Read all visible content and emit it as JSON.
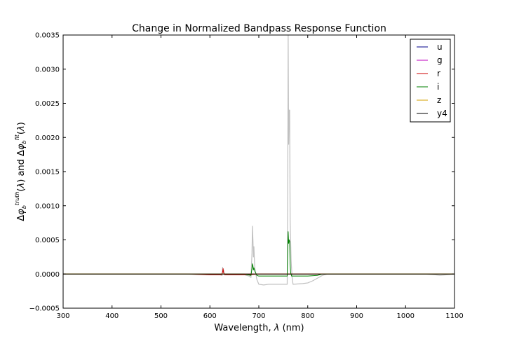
{
  "chart_data": {
    "type": "line",
    "title": "Change in Normalized Bandpass Response Function",
    "xlabel": "Wavelength, λ (nm)",
    "ylabel": "Δφ_b^truth(λ) and Δφ_b^fit(λ)",
    "xlim": [
      300,
      1100
    ],
    "ylim": [
      -0.0005,
      0.0035
    ],
    "xticks": [
      300,
      400,
      500,
      600,
      700,
      800,
      900,
      1000,
      1100
    ],
    "xtick_labels": [
      "300",
      "400",
      "500",
      "600",
      "700",
      "800",
      "900",
      "1000",
      "1100"
    ],
    "yticks": [
      -0.0005,
      0.0,
      0.0005,
      0.001,
      0.0015,
      0.002,
      0.0025,
      0.003,
      0.0035
    ],
    "ytick_labels": [
      "−0.0005",
      "0.0000",
      "0.0005",
      "0.0010",
      "0.0015",
      "0.0020",
      "0.0025",
      "0.0030",
      "0.0035"
    ],
    "grid": false,
    "legend_position": "top-right",
    "series": [
      {
        "name": "u",
        "color": "#00008b",
        "x": [
          300,
          1100
        ],
        "y": [
          0.0,
          0.0
        ]
      },
      {
        "name": "g",
        "color": "#bf00bf",
        "x": [
          300,
          1100
        ],
        "y": [
          0.0,
          0.0
        ]
      },
      {
        "name": "r",
        "color": "#cc0000",
        "x": [
          300,
          550,
          600,
          624,
          626,
          627,
          628,
          630,
          650,
          680,
          700,
          1100
        ],
        "y": [
          0.0,
          0.0,
          -1e-05,
          -1e-05,
          3e-05,
          8e-05,
          2e-05,
          -1e-05,
          -1e-05,
          -1e-05,
          0.0,
          0.0
        ]
      },
      {
        "name": "i",
        "color": "#008000",
        "x": [
          300,
          670,
          684,
          686,
          687,
          688,
          689,
          690,
          692,
          696,
          700,
          720,
          758,
          759,
          760,
          761,
          762,
          763,
          764,
          765,
          767,
          770,
          780,
          800,
          820,
          830,
          1100
        ],
        "y": [
          0.0,
          0.0,
          -2e-05,
          8e-05,
          0.00015,
          0.00012,
          6e-05,
          9e-05,
          4e-05,
          -2e-05,
          -3e-05,
          -3e-05,
          -3e-05,
          0.0003,
          0.00062,
          0.00045,
          0.0005,
          0.00048,
          0.00015,
          2e-05,
          -3e-05,
          -3e-05,
          -3e-05,
          -3e-05,
          -2e-05,
          0.0,
          0.0
        ]
      },
      {
        "name": "z",
        "color": "#d4a000",
        "x": [
          300,
          1100
        ],
        "y": [
          0.0,
          0.0
        ]
      },
      {
        "name": "y4",
        "color": "#000000",
        "x": [
          300,
          1100
        ],
        "y": [
          0.0,
          0.0
        ]
      },
      {
        "name": "",
        "color": "#c0c0c0",
        "x": [
          300,
          550,
          600,
          620,
          625,
          626,
          627,
          628,
          630,
          650,
          670,
          680,
          684,
          686,
          687,
          688,
          689,
          690,
          691,
          692,
          694,
          696,
          700,
          710,
          720,
          740,
          758,
          759,
          760,
          761,
          762,
          763,
          764,
          766,
          768,
          770,
          790,
          800,
          810,
          820,
          830,
          840,
          850,
          900,
          1000,
          1040,
          1060,
          1070,
          1100
        ],
        "y": [
          0.0,
          0.0,
          -1e-05,
          -1e-05,
          -2e-05,
          0.0001,
          3e-05,
          6e-05,
          -1e-05,
          -1e-05,
          -1e-05,
          -3e-05,
          -5e-05,
          0.0003,
          0.0007,
          0.0005,
          0.00025,
          0.0004,
          0.0002,
          8e-05,
          0.0,
          -8e-05,
          -0.00015,
          -0.00016,
          -0.00015,
          -0.00015,
          -0.00015,
          0.001,
          0.0035,
          0.0019,
          0.0024,
          0.0024,
          0.0008,
          0.0002,
          -5e-05,
          -0.00015,
          -0.00014,
          -0.00013,
          -0.0001,
          -6e-05,
          -2e-05,
          0.0,
          0.0,
          0.0,
          0.0,
          0.0,
          -1e-05,
          -2e-05,
          0.0
        ]
      }
    ]
  }
}
